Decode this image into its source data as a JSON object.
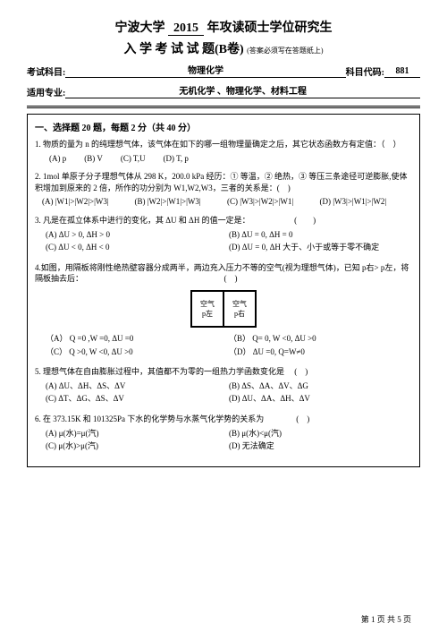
{
  "header": {
    "university": "宁波大学",
    "year": "2015",
    "title_suffix": "年攻读硕士学位研究生",
    "line2_prefix": "入 学 考 试 试 题(B卷)",
    "subtitle": "(答案必须写在答题纸上)"
  },
  "meta": {
    "subject_label": "考试科目:",
    "subject_value": "物理化学",
    "code_label": "科目代码:",
    "code_value": "881",
    "major_label": "适用专业:",
    "major_value": "无机化学 、物理化学、材料工程"
  },
  "section": {
    "title": "一、选择题 20 题，每题 2 分（共 40 分）"
  },
  "q1": {
    "text": "1. 物质的量为 n 的纯理想气体，该气体在如下的哪一组物理量确定之后，其它状态函数方有定值：（　）",
    "a": "(A) p",
    "b": "(B) V",
    "c": "(C) T,U",
    "d": "(D) T, p"
  },
  "q2": {
    "text": "2. 1mol 单原子分子理想气体从 298 K，200.0 kPa 经历：① 等温，② 绝热，③ 等压三条途径可逆膨胀,使体积增加到原来的 2 倍，所作的功分别为 W1,W2,W3，三者的关系是：(　)",
    "a": "(A) |W1|>|W2|>|W3|",
    "b": "(B) |W2|>|W1|>|W3|",
    "c": "(C) |W3|>|W2|>|W1|",
    "d": "(D) |W3|>|W1|>|W2|"
  },
  "q3": {
    "text": "3. 凡是在孤立体系中进行的变化，其 ΔU 和 ΔH 的值一定是：　　　　　　(　　)",
    "a": "(A) ΔU > 0, ΔH > 0",
    "b": "(B) ΔU = 0, ΔH = 0",
    "c": "(C) ΔU < 0, ΔH < 0",
    "d": "(D) ΔU = 0, ΔH 大于、小于或等于零不确定"
  },
  "q4": {
    "text": "4.如图，用隔板将刚性绝热壁容器分成两半，两边充入压力不等的空气(视为理想气体)，已知 p右> p左，将隔板抽去后：　　　　　　　　　　　　　　　　　　(　)",
    "diag_left_top": "空气",
    "diag_left_bot": "p左",
    "diag_right_top": "空气",
    "diag_right_bot": "p右",
    "a": "（A） Q =0 ,W =0, ΔU =0",
    "b": "（B） Q= 0, W <0, ΔU >0",
    "c": "（C） Q >0, W <0, ΔU >0",
    "d": "（D） ΔU =0, Q=W≠0"
  },
  "q5": {
    "text": "5. 理想气体在自由膨胀过程中，其值都不为零的一组热力学函数变化是　 (　)",
    "a": "(A) ΔU、ΔH、ΔS、ΔV",
    "b": "(B) ΔS、ΔA、ΔV、ΔG",
    "c": "(C) ΔT、ΔG、ΔS、ΔV",
    "d": "(D) ΔU、ΔA、ΔH、ΔV"
  },
  "q6": {
    "text": "6. 在 373.15K 和 101325Pa 下水的化学势与水蒸气化学势的关系为　　　　(　)",
    "a": "(A) μ(水)=μ(汽)",
    "b": "(B) μ(水)<μ(汽)",
    "c": "(C) μ(水)>μ(汽)",
    "d": "(D) 无法确定"
  },
  "footer": {
    "text": "第 1 页 共 5 页"
  }
}
